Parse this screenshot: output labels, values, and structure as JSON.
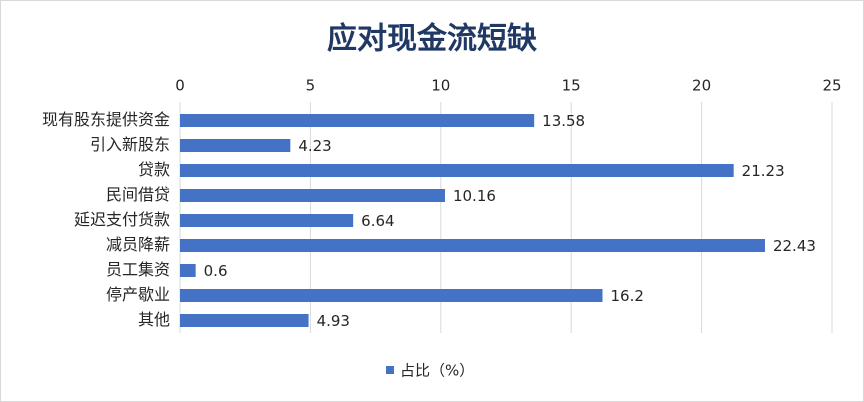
{
  "chart_data": {
    "type": "bar",
    "orientation": "horizontal",
    "title": "应对现金流短缺",
    "categories": [
      "现有股东提供资金",
      "引入新股东",
      "贷款",
      "民间借贷",
      "延迟支付货款",
      "减员降薪",
      "员工集资",
      "停产歇业",
      "其他"
    ],
    "series": [
      {
        "name": "占比（%）",
        "color": "#4472c4",
        "values": [
          13.58,
          4.23,
          21.23,
          10.16,
          6.64,
          22.43,
          0.6,
          16.2,
          4.93
        ]
      }
    ],
    "xlim": [
      0,
      25
    ],
    "xticks": [
      0,
      5,
      10,
      15,
      20,
      25
    ],
    "grid": true,
    "legend": "bottom"
  }
}
